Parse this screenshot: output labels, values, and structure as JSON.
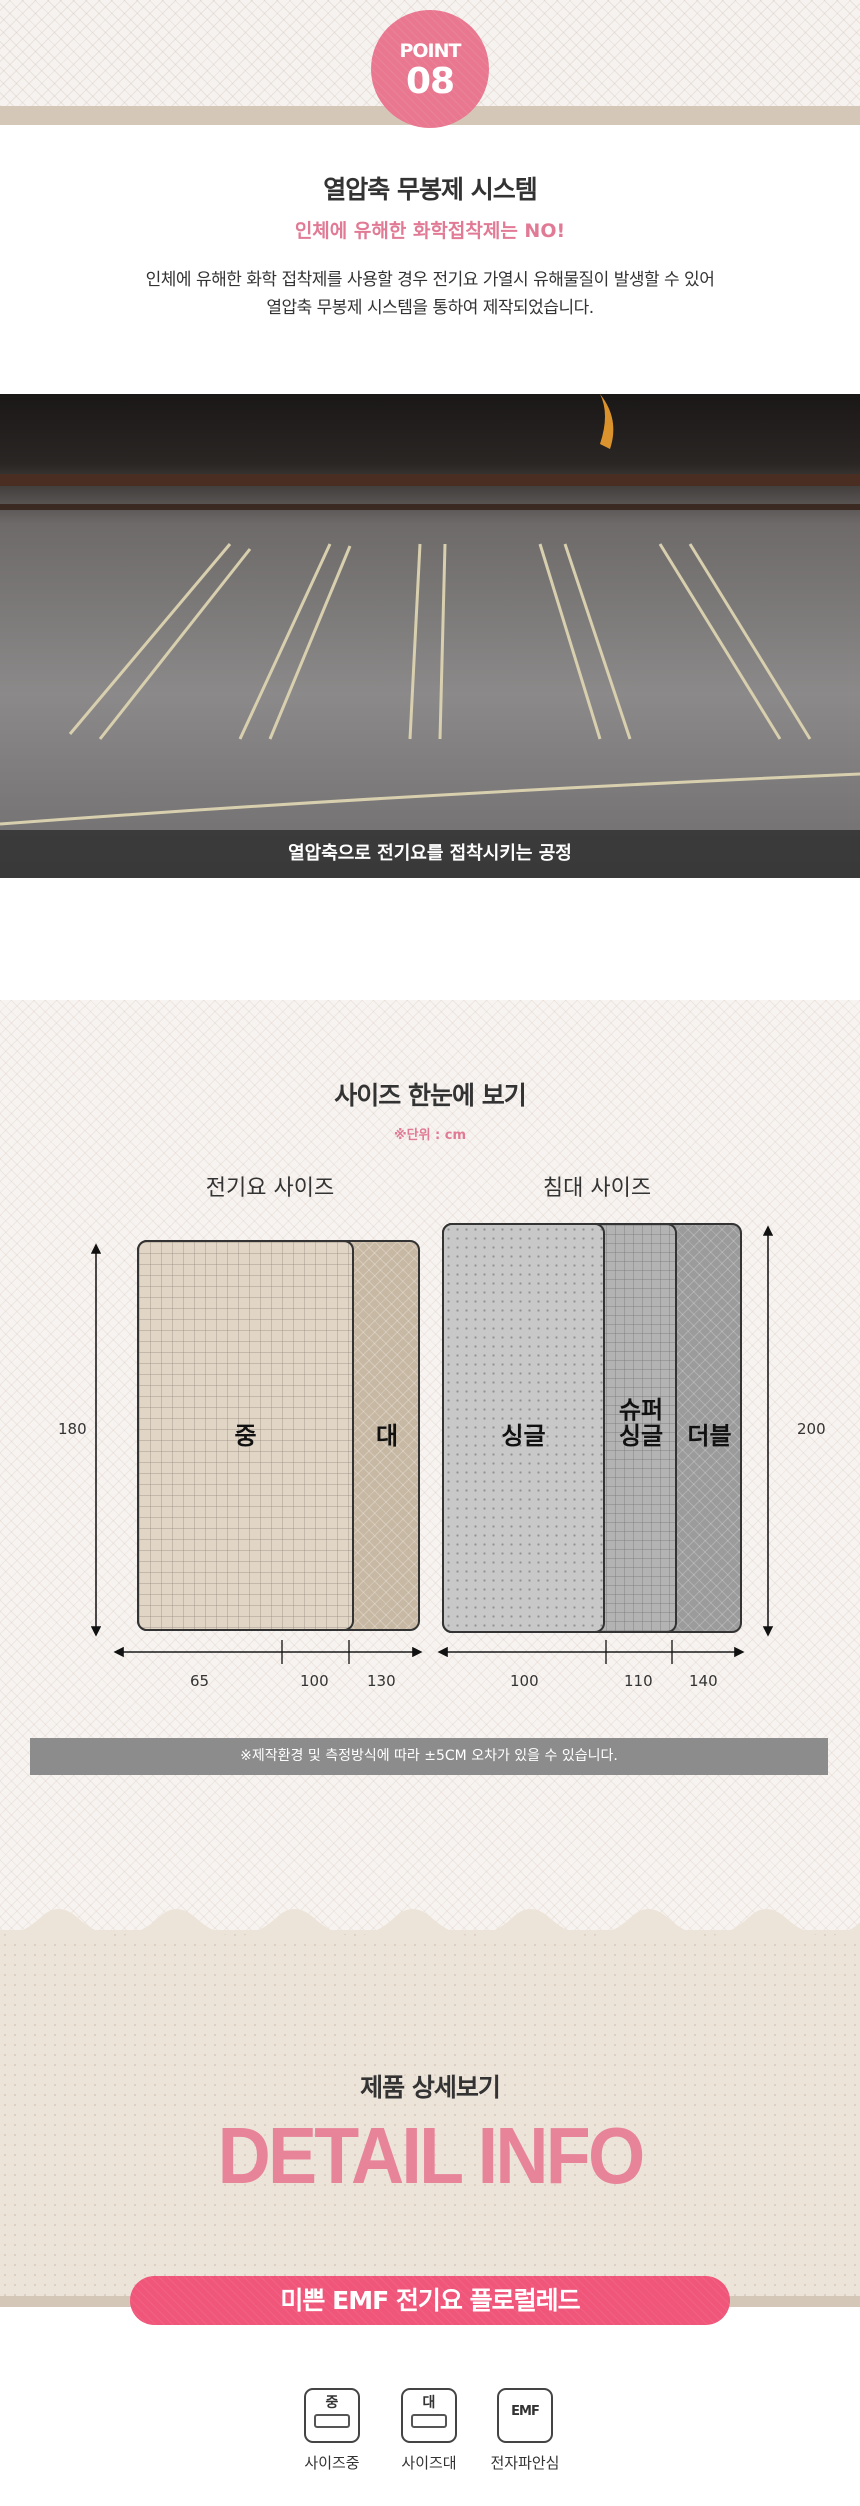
{
  "point": {
    "label": "POINT",
    "number": "08"
  },
  "section1": {
    "title": "열압축 무봉제 시스템",
    "subtitle": "인체에 유해한 화학접착제는 NO!",
    "body": [
      "인체에 유해한 화학 접착제를 사용할 경우 전기요 가열시 유해물질이 발생할 수 있어",
      "열압축 무봉제 시스템을 통하여 제작되었습니다."
    ],
    "photo_caption": "열압축으로 전기요를 접착시키는 공정"
  },
  "size": {
    "title": "사이즈 한눈에 보기",
    "unit": "※단위 : cm",
    "mat_heading": "전기요 사이즈",
    "bed_heading": "침대 사이즈",
    "mat_labels": [
      "중",
      "대"
    ],
    "bed_labels": [
      "싱글",
      "슈퍼\n싱글",
      "더블"
    ],
    "mat_height": "180",
    "bed_height": "200",
    "mat_widths": [
      "65",
      "100",
      "130"
    ],
    "bed_widths": [
      "100",
      "110",
      "140"
    ],
    "note": "※제작환경 및 측정방식에 따라 ±5CM 오차가 있을 수 있습니다."
  },
  "detail": {
    "subtitle": "제품 상세보기",
    "title": "DETAIL INFO",
    "product": "미쁜 EMF 전기요 플로럴레드",
    "icons": [
      {
        "glyph": "중",
        "label": "사이즈중"
      },
      {
        "glyph": "대",
        "label": "사이즈대"
      },
      {
        "glyph": "EMF",
        "label": "전자파안심"
      }
    ]
  },
  "colors": {
    "pink": "#e8778f",
    "pill": "#f0557a",
    "beige": "#ede4d9",
    "tan": "#d5c7b8"
  }
}
